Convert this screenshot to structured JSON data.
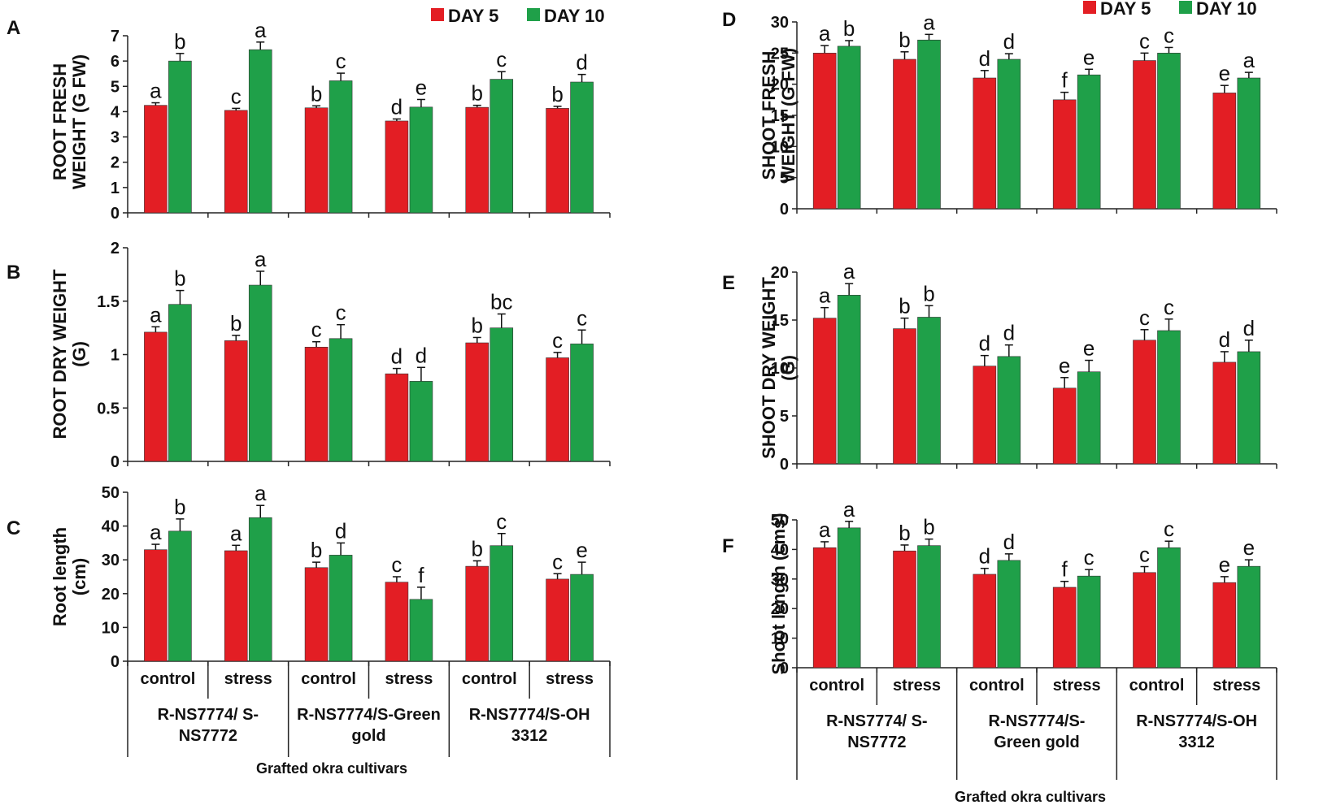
{
  "legend": [
    {
      "label": "DAY 5",
      "color": "#e31e24"
    },
    {
      "label": "DAY 10",
      "color": "#1fa049"
    }
  ],
  "x_axis": {
    "title": "Grafted okra cultivars",
    "conditions": [
      "control",
      "stress",
      "control",
      "stress",
      "control",
      "stress"
    ],
    "groups_left": [
      [
        "R-NS7774/ S-",
        "NS7772"
      ],
      [
        "R-NS7774/S-Green",
        "gold"
      ],
      [
        "R-NS7774/S-OH",
        "3312"
      ]
    ],
    "groups_right": [
      [
        "R-NS7774/ S-",
        "NS7772"
      ],
      [
        "R-NS7774/S-",
        "Green gold"
      ],
      [
        "R-NS7774/S-OH",
        "3312"
      ]
    ]
  },
  "chart_data": [
    {
      "panel": "A",
      "type": "bar",
      "ylabel": [
        "ROOT  FRESH",
        "WEIGHT (G FW)"
      ],
      "ylim": [
        0,
        7
      ],
      "yticks": [
        0,
        1,
        2,
        3,
        4,
        5,
        6,
        7
      ],
      "ytick_labels": [
        "0",
        "1",
        "2",
        "3",
        "4",
        "5",
        "6",
        "7"
      ],
      "categories": [
        "control",
        "stress",
        "control",
        "stress",
        "control",
        "stress"
      ],
      "series": [
        {
          "name": "DAY 5",
          "values": [
            4.25,
            4.05,
            4.15,
            3.63,
            4.17,
            4.13
          ],
          "errors": [
            0.1,
            0.08,
            0.08,
            0.08,
            0.08,
            0.08
          ],
          "letters": [
            "a",
            "c",
            "b",
            "d",
            "b",
            "b"
          ]
        },
        {
          "name": "DAY 10",
          "values": [
            6.0,
            6.45,
            5.22,
            4.18,
            5.28,
            5.17
          ],
          "errors": [
            0.3,
            0.3,
            0.3,
            0.3,
            0.3,
            0.3
          ],
          "letters": [
            "b",
            "a",
            "c",
            "e",
            "c",
            "d"
          ]
        }
      ]
    },
    {
      "panel": "B",
      "type": "bar",
      "ylabel": [
        "ROOT DRY WEIGHT",
        "(G)"
      ],
      "ylim": [
        0,
        2
      ],
      "yticks": [
        0,
        0.5,
        1,
        1.5,
        2
      ],
      "ytick_labels": [
        "0",
        "0.5",
        "1",
        "1.5",
        "2"
      ],
      "categories": [
        "control",
        "stress",
        "control",
        "stress",
        "control",
        "stress"
      ],
      "series": [
        {
          "name": "DAY 5",
          "values": [
            1.21,
            1.13,
            1.07,
            0.82,
            1.11,
            0.97
          ],
          "errors": [
            0.05,
            0.05,
            0.05,
            0.05,
            0.05,
            0.05
          ],
          "letters": [
            "a",
            "b",
            "c",
            "d",
            "b",
            "c"
          ]
        },
        {
          "name": "DAY 10",
          "values": [
            1.47,
            1.65,
            1.15,
            0.75,
            1.25,
            1.1
          ],
          "errors": [
            0.13,
            0.13,
            0.13,
            0.13,
            0.13,
            0.13
          ],
          "letters": [
            "b",
            "a",
            "c",
            "d",
            "bc",
            "c"
          ]
        }
      ]
    },
    {
      "panel": "C",
      "type": "bar",
      "ylabel": [
        "Root length",
        "(cm)"
      ],
      "ylim": [
        0,
        50
      ],
      "yticks": [
        0,
        10,
        20,
        30,
        40,
        50
      ],
      "ytick_labels": [
        "0",
        "10",
        "20",
        "30",
        "40",
        "50"
      ],
      "categories": [
        "control",
        "stress",
        "control",
        "stress",
        "control",
        "stress"
      ],
      "series": [
        {
          "name": "DAY 5",
          "values": [
            33.0,
            32.7,
            27.7,
            23.4,
            28.1,
            24.3
          ],
          "errors": [
            1.6,
            1.6,
            1.6,
            1.6,
            1.6,
            1.6
          ],
          "letters": [
            "a",
            "a",
            "b",
            "c",
            "b",
            "c"
          ]
        },
        {
          "name": "DAY 10",
          "values": [
            38.5,
            42.5,
            31.4,
            18.3,
            34.2,
            25.7
          ],
          "errors": [
            3.6,
            3.6,
            3.6,
            3.6,
            3.6,
            3.6
          ],
          "letters": [
            "b",
            "a",
            "d",
            "f",
            "c",
            "e"
          ]
        }
      ]
    },
    {
      "panel": "D",
      "type": "bar",
      "ylabel": [
        "SHOOT FRESH",
        "WEIGHT (G FW)"
      ],
      "ylim": [
        0,
        30
      ],
      "yticks": [
        0,
        5,
        10,
        15,
        20,
        25,
        30
      ],
      "ytick_labels": [
        "0",
        "5",
        "10",
        "15",
        "20",
        "25",
        "30"
      ],
      "categories": [
        "control",
        "stress",
        "control",
        "stress",
        "control",
        "stress"
      ],
      "series": [
        {
          "name": "DAY 5",
          "values": [
            25.0,
            24.0,
            21.0,
            17.5,
            23.8,
            18.6
          ],
          "errors": [
            1.2,
            1.2,
            1.2,
            1.2,
            1.2,
            1.2
          ],
          "letters": [
            "a",
            "b",
            "d",
            "f",
            "c",
            "e"
          ]
        },
        {
          "name": "DAY 10",
          "values": [
            26.1,
            27.1,
            24.0,
            21.5,
            25.0,
            21.0
          ],
          "errors": [
            0.9,
            0.9,
            0.9,
            0.9,
            0.9,
            0.9
          ],
          "letters": [
            "b",
            "a",
            "d",
            "e",
            "c",
            "a"
          ]
        }
      ]
    },
    {
      "panel": "E",
      "type": "bar",
      "ylabel": [
        "SHOOT DRY WEIGHT",
        "(G)"
      ],
      "ylim": [
        0,
        20
      ],
      "yticks": [
        0,
        5,
        10,
        15,
        20
      ],
      "ytick_labels": [
        "0",
        "5",
        "10",
        "15",
        "20"
      ],
      "categories": [
        "control",
        "stress",
        "control",
        "stress",
        "control",
        "stress"
      ],
      "series": [
        {
          "name": "DAY 5",
          "values": [
            15.2,
            14.1,
            10.2,
            7.9,
            12.9,
            10.6
          ],
          "errors": [
            1.1,
            1.1,
            1.1,
            1.1,
            1.1,
            1.1
          ],
          "letters": [
            "a",
            "b",
            "d",
            "e",
            "c",
            "d"
          ]
        },
        {
          "name": "DAY 10",
          "values": [
            17.6,
            15.3,
            11.2,
            9.6,
            13.9,
            11.7
          ],
          "errors": [
            1.2,
            1.2,
            1.2,
            1.2,
            1.2,
            1.2
          ],
          "letters": [
            "a",
            "b",
            "d",
            "e",
            "c",
            "d"
          ]
        }
      ]
    },
    {
      "panel": "F",
      "type": "bar",
      "ylabel": [
        "Shoot length (cms)"
      ],
      "ylim": [
        0,
        50
      ],
      "yticks": [
        0,
        10,
        20,
        30,
        40,
        50
      ],
      "ytick_labels": [
        "0",
        "10",
        "20",
        "30",
        "40",
        "50"
      ],
      "categories": [
        "control",
        "stress",
        "control",
        "stress",
        "control",
        "stress"
      ],
      "series": [
        {
          "name": "DAY 5",
          "values": [
            40.6,
            39.5,
            31.6,
            27.2,
            32.2,
            28.8
          ],
          "errors": [
            2.0,
            2.0,
            2.0,
            2.0,
            2.0,
            2.0
          ],
          "letters": [
            "a",
            "b",
            "d",
            "f",
            "c",
            "e"
          ]
        },
        {
          "name": "DAY 10",
          "values": [
            47.3,
            41.3,
            36.3,
            31.0,
            40.6,
            34.3
          ],
          "errors": [
            2.2,
            2.2,
            2.2,
            2.2,
            2.2,
            2.2
          ],
          "letters": [
            "a",
            "b",
            "d",
            "c",
            "c",
            "e"
          ]
        }
      ]
    }
  ]
}
